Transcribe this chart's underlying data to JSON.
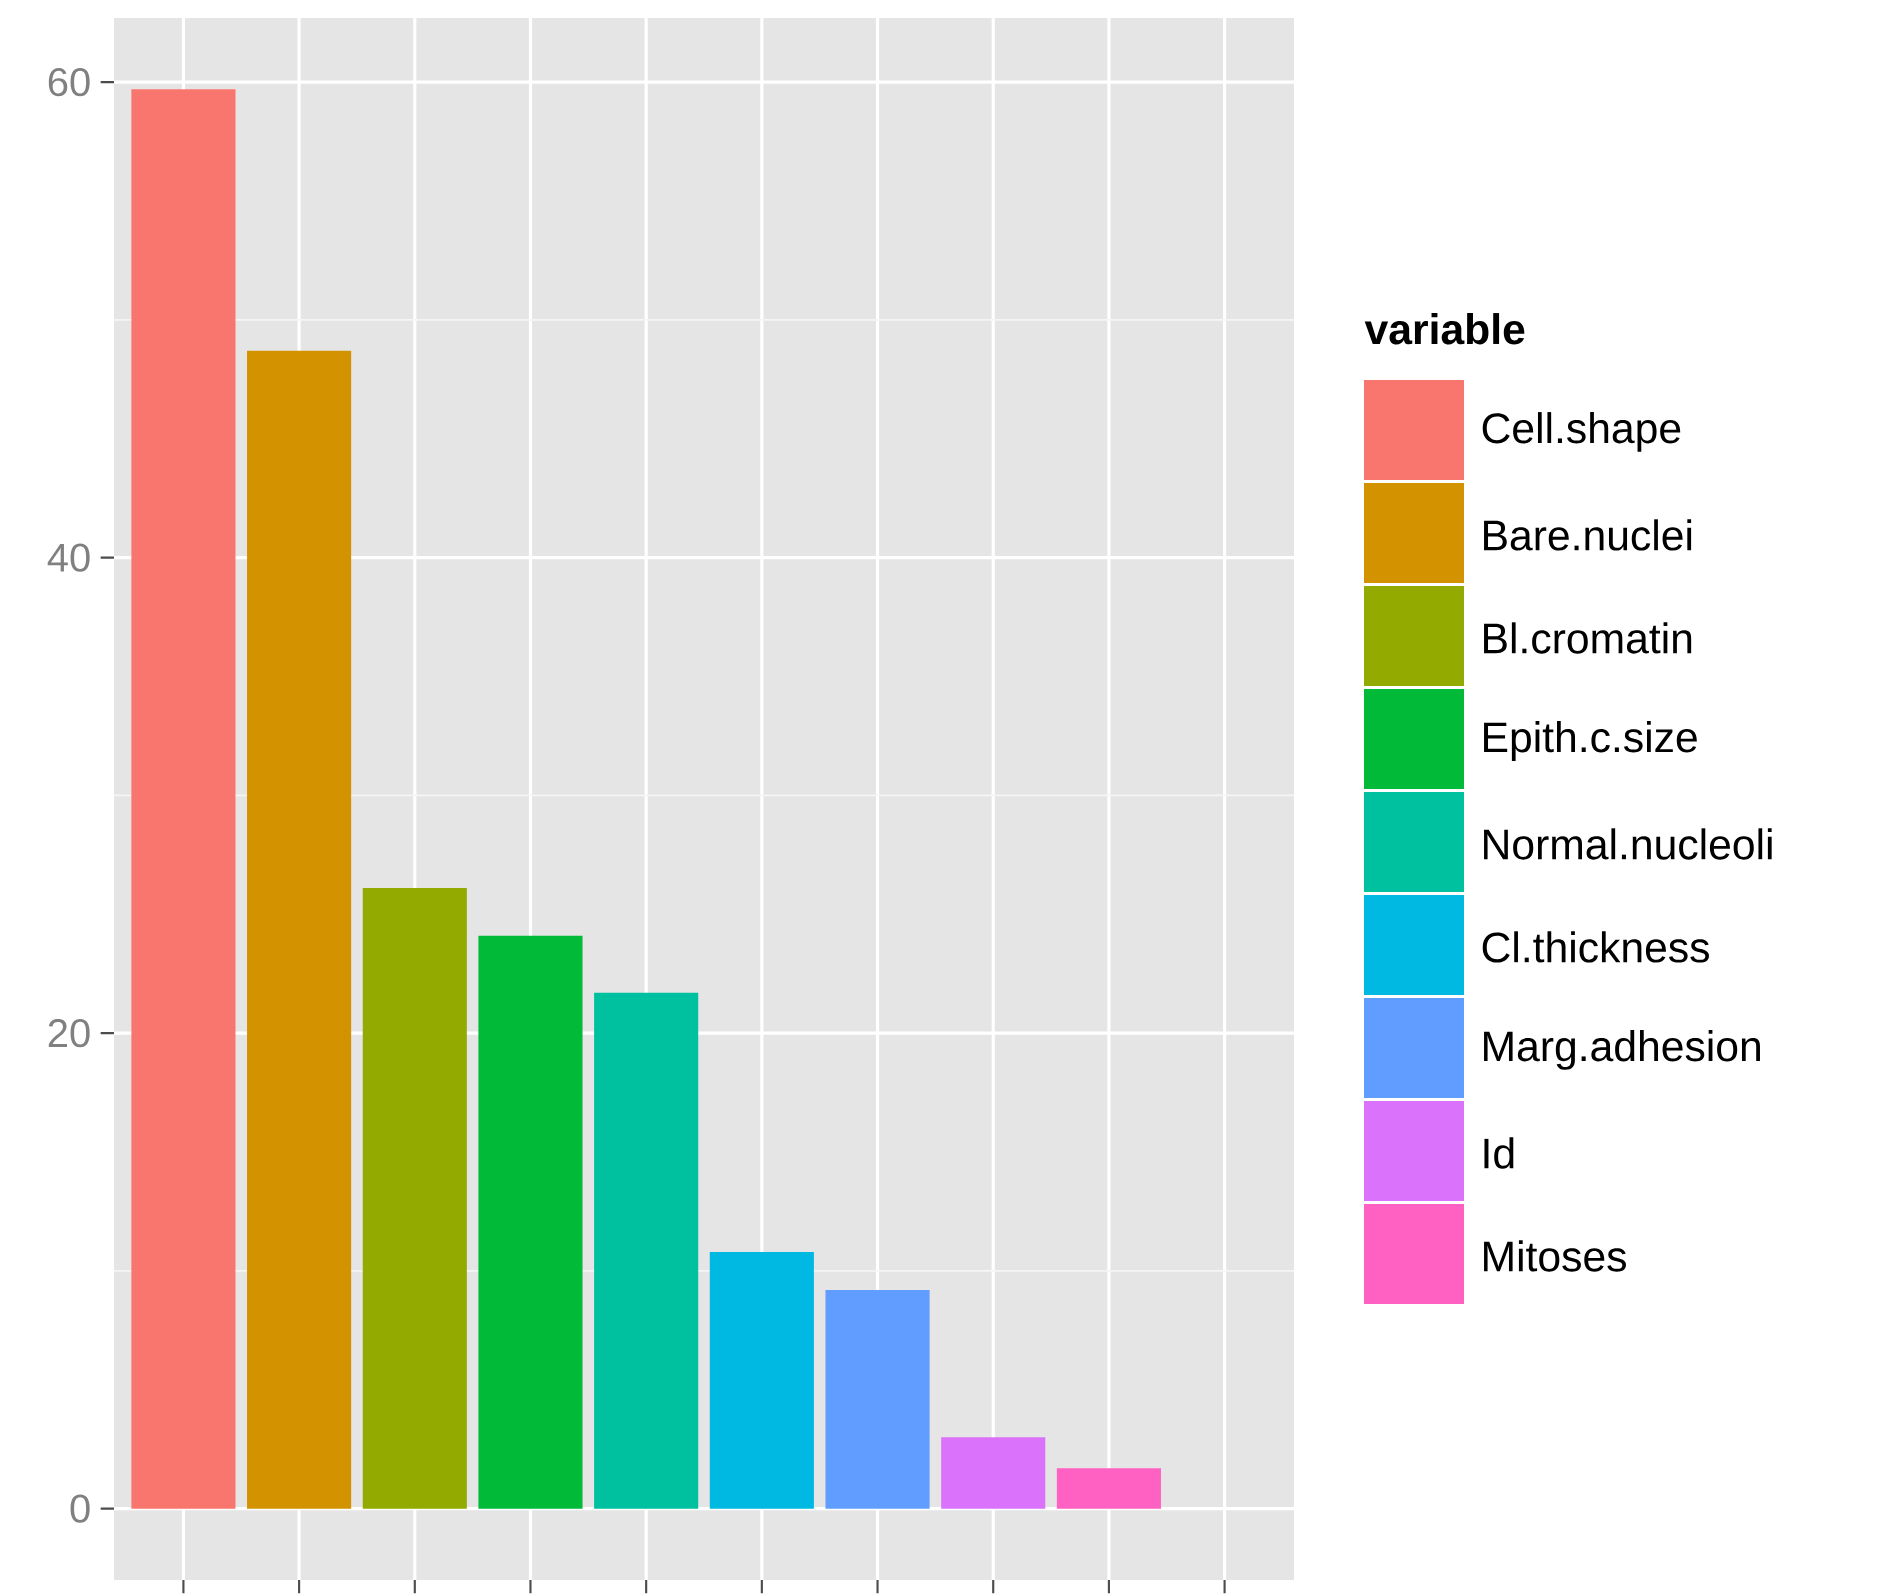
{
  "chart_data": {
    "type": "bar",
    "legend_title": "variable",
    "categories": [
      null,
      null,
      null,
      null,
      null,
      null,
      null,
      null,
      null,
      null
    ],
    "series": [
      {
        "name": "Cell.shape",
        "color": "#f8766d",
        "values": [
          59.7,
          null,
          null,
          null,
          null,
          null,
          null,
          null,
          null,
          null
        ]
      },
      {
        "name": "Bare.nuclei",
        "color": "#d39200",
        "values": [
          null,
          48.7,
          null,
          null,
          null,
          null,
          null,
          null,
          null,
          null
        ]
      },
      {
        "name": "Bl.cromatin",
        "color": "#93aa00",
        "values": [
          null,
          null,
          26.1,
          null,
          null,
          null,
          null,
          null,
          null,
          null
        ]
      },
      {
        "name": "Epith.c.size",
        "color": "#00ba38",
        "values": [
          null,
          null,
          null,
          24.1,
          null,
          null,
          null,
          null,
          null,
          null
        ]
      },
      {
        "name": "Normal.nucleoli",
        "color": "#00c19f",
        "values": [
          null,
          null,
          null,
          null,
          21.7,
          null,
          null,
          null,
          null,
          null
        ]
      },
      {
        "name": "Cl.thickness",
        "color": "#00b9e3",
        "values": [
          null,
          null,
          null,
          null,
          null,
          10.8,
          null,
          null,
          null,
          null
        ]
      },
      {
        "name": "Marg.adhesion",
        "color": "#619cff",
        "values": [
          null,
          null,
          null,
          null,
          null,
          null,
          9.2,
          null,
          null,
          null
        ]
      },
      {
        "name": "Id",
        "color": "#db72fb",
        "values": [
          null,
          null,
          null,
          null,
          null,
          null,
          null,
          3.0,
          null,
          null
        ]
      },
      {
        "name": "Mitoses",
        "color": "#ff61c3",
        "values": [
          null,
          null,
          null,
          null,
          null,
          null,
          null,
          null,
          1.7,
          null
        ]
      }
    ],
    "ylim": [
      -3,
      62.7
    ],
    "yticks": [
      0,
      20,
      40,
      60
    ],
    "grid": true,
    "legend": "right",
    "tick_labels": "y"
  }
}
